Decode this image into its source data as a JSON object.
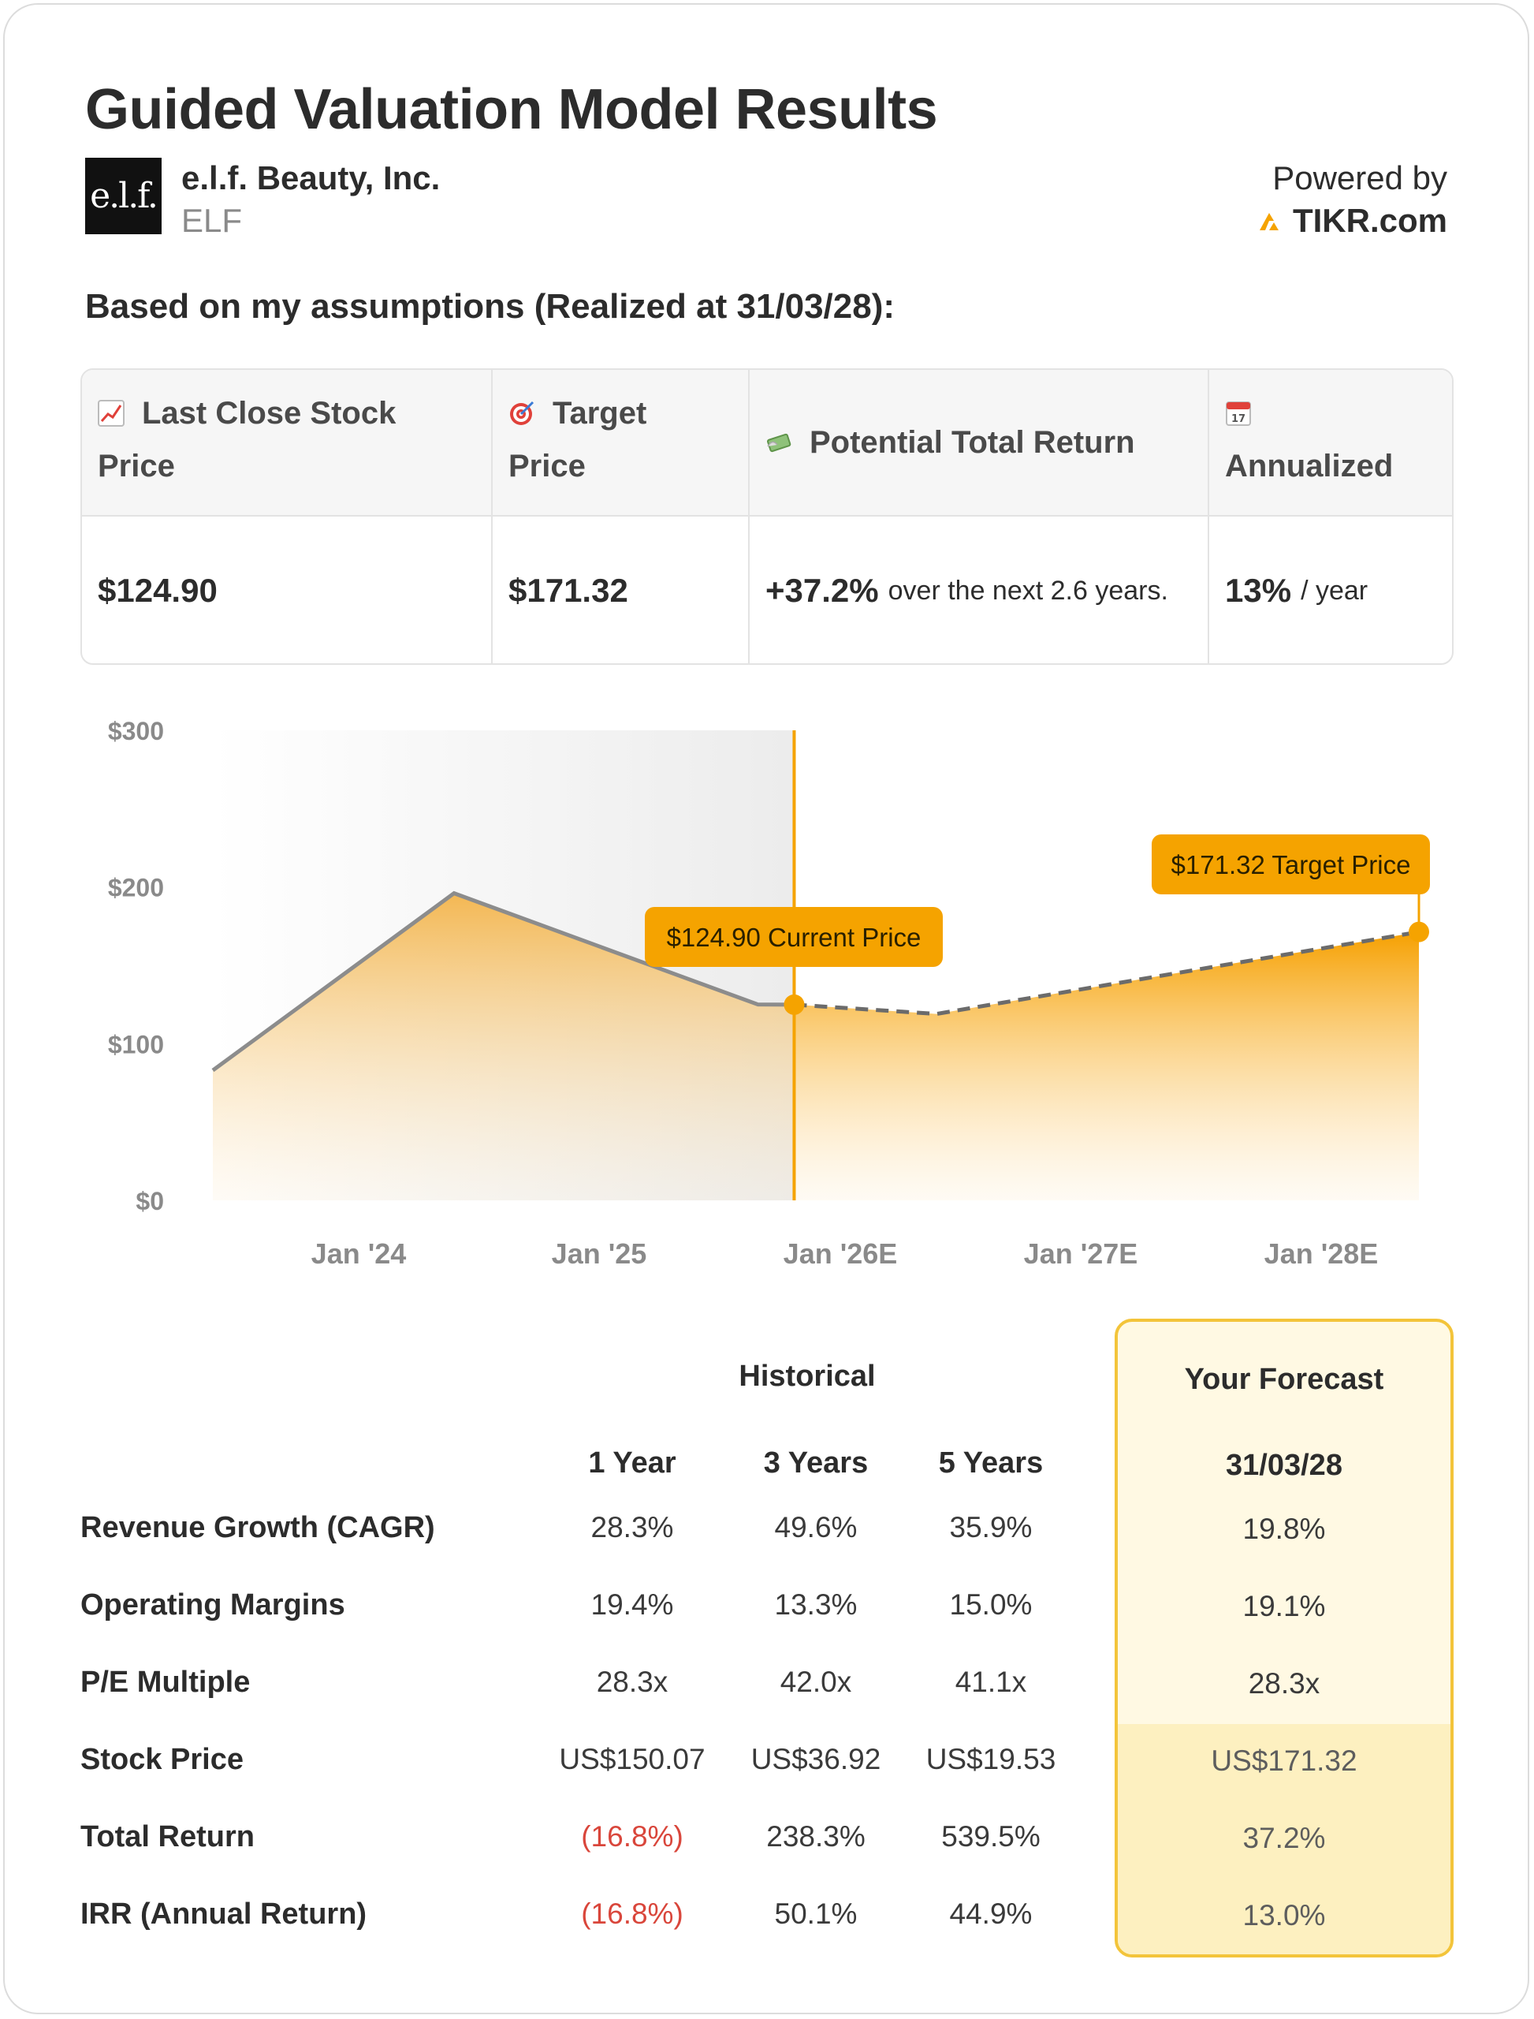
{
  "header": {
    "title": "Guided Valuation Model Results",
    "logo_text": "e.l.f.",
    "company": "e.l.f. Beauty, Inc.",
    "ticker": "ELF",
    "powered_by": "Powered by",
    "brand": "TIKR.com"
  },
  "assumption_line": "Based on my assumptions (Realized at 31/03/28):",
  "summary": {
    "last_close_label": "Last Close Stock Price",
    "last_close_icon": "chart-increasing-icon",
    "last_close_value": "$124.90",
    "target_label": "Target Price",
    "target_icon": "target-icon",
    "target_value": "$171.32",
    "return_label": "Potential Total Return",
    "return_icon": "money-with-wings-icon",
    "return_value": "+37.2%",
    "return_sub": "over the next 2.6 years.",
    "annualized_label": "Annualized",
    "annualized_icon": "calendar-icon",
    "annualized_day": "17",
    "annualized_value": "13%",
    "annualized_sub": "/ year"
  },
  "chart_data": {
    "type": "area",
    "y_ticks": [
      "$300",
      "$200",
      "$100",
      "$0"
    ],
    "ylim": [
      0,
      300
    ],
    "x_ticks": [
      "Jan '24",
      "Jan '25",
      "Jan '26E",
      "Jan '27E",
      "Jan '28E"
    ],
    "historical": [
      {
        "t": 0.0,
        "y": 83
      },
      {
        "t": 0.2,
        "y": 196
      },
      {
        "t": 0.452,
        "y": 125
      },
      {
        "t": 0.482,
        "y": 124.9
      }
    ],
    "forecast": [
      {
        "t": 0.482,
        "y": 124.9
      },
      {
        "t": 0.6,
        "y": 119
      },
      {
        "t": 1.0,
        "y": 171.32
      }
    ],
    "current_price_label": "$124.90 Current Price",
    "target_price_label": "$171.32 Target Price",
    "colors": {
      "accent": "#f5a300",
      "line": "#8c8c8c",
      "shade": "#f3f3f3"
    }
  },
  "table": {
    "historical_label": "Historical",
    "forecast_label": "Your Forecast",
    "forecast_date": "31/03/28",
    "periods": [
      "1 Year",
      "3 Years",
      "5 Years"
    ],
    "rows": [
      {
        "label": "Revenue Growth (CAGR)",
        "values": [
          "28.3%",
          "49.6%",
          "35.9%"
        ],
        "forecast": "19.8%"
      },
      {
        "label": "Operating Margins",
        "values": [
          "19.4%",
          "13.3%",
          "15.0%"
        ],
        "forecast": "19.1%"
      },
      {
        "label": "P/E Multiple",
        "values": [
          "28.3x",
          "42.0x",
          "41.1x"
        ],
        "forecast": "28.3x"
      },
      {
        "label": "Stock Price",
        "values": [
          "US$150.07",
          "US$36.92",
          "US$19.53"
        ],
        "forecast": "US$171.32"
      },
      {
        "label": "Total Return",
        "values": [
          "(16.8%)",
          "238.3%",
          "539.5%"
        ],
        "forecast": "37.2%"
      },
      {
        "label": "IRR (Annual Return)",
        "values": [
          "(16.8%)",
          "50.1%",
          "44.9%"
        ],
        "forecast": "13.0%"
      }
    ],
    "colors": {
      "negative": "#d9463b",
      "forecast_border": "#f3c43a",
      "forecast_bg": "#fff9e3"
    }
  }
}
